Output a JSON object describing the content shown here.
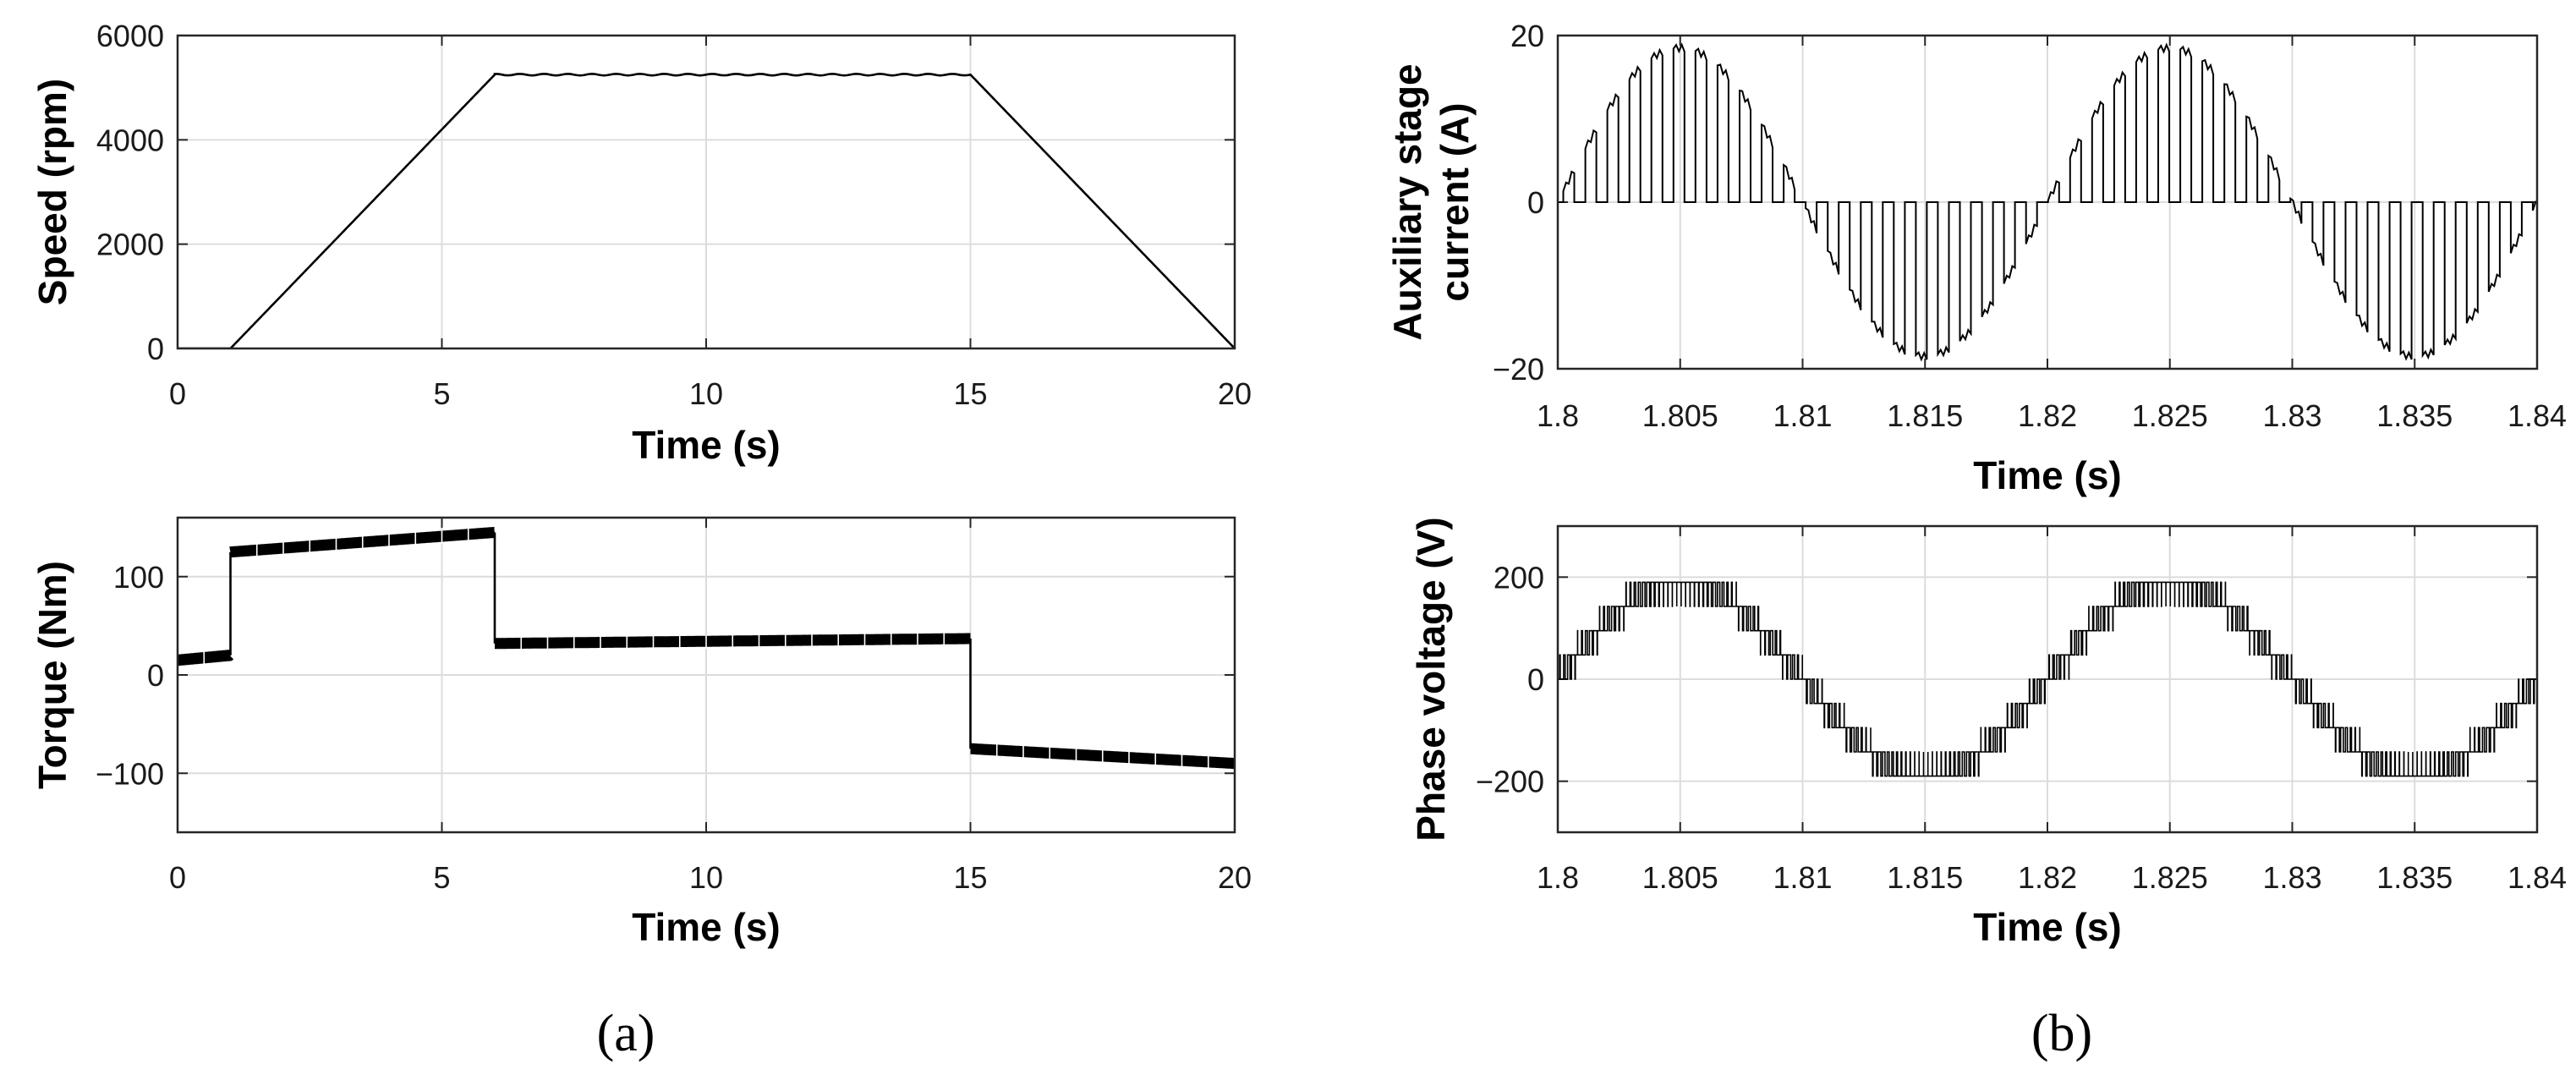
{
  "figure": {
    "panel_labels": [
      "(a)",
      "(b)"
    ]
  },
  "chart_data": [
    {
      "id": "speed",
      "type": "line",
      "panel": "(a)",
      "title": "",
      "xlabel": "Time (s)",
      "ylabel": "Speed (rpm)",
      "xlim": [
        0,
        20
      ],
      "ylim": [
        0,
        6000
      ],
      "xticks": [
        0,
        5,
        10,
        15,
        20
      ],
      "yticks": [
        0,
        2000,
        4000,
        6000
      ],
      "xtick_labels": [
        "0",
        "5",
        "10",
        "15",
        "20"
      ],
      "ytick_labels": [
        "0",
        "2000",
        "4000",
        "6000"
      ],
      "grid": true,
      "series": [
        {
          "name": "Speed",
          "x": [
            0,
            1,
            6,
            15,
            20
          ],
          "y": [
            0,
            0,
            5250,
            5250,
            0
          ],
          "plateau_ripple": 30
        }
      ]
    },
    {
      "id": "torque",
      "type": "line",
      "panel": "(a)",
      "title": "",
      "xlabel": "Time (s)",
      "ylabel": "Torque (Nm)",
      "xlim": [
        0,
        20
      ],
      "ylim": [
        -160,
        160
      ],
      "xticks": [
        0,
        5,
        10,
        15,
        20
      ],
      "yticks": [
        -100,
        0,
        100
      ],
      "xtick_labels": [
        "0",
        "5",
        "10",
        "15",
        "20"
      ],
      "ytick_labels": [
        "−100",
        "0",
        "100"
      ],
      "grid": true,
      "series": [
        {
          "name": "Torque",
          "segments": [
            {
              "x": [
                0,
                1
              ],
              "y": [
                15,
                20
              ]
            },
            {
              "x": [
                1,
                6
              ],
              "y": [
                125,
                145
              ]
            },
            {
              "x": [
                6,
                15
              ],
              "y": [
                32,
                37
              ]
            },
            {
              "x": [
                15,
                20
              ],
              "y": [
                -75,
                -90
              ]
            }
          ],
          "ripple_band": 5
        }
      ]
    },
    {
      "id": "aux_current",
      "type": "line",
      "panel": "(b)",
      "title": "",
      "xlabel": "Time (s)",
      "ylabel": [
        "Auxiliary stage",
        "current (A)"
      ],
      "xlim": [
        1.8,
        1.84
      ],
      "ylim": [
        -20,
        20
      ],
      "xticks": [
        1.8,
        1.805,
        1.81,
        1.815,
        1.82,
        1.825,
        1.83,
        1.835,
        1.84
      ],
      "yticks": [
        -20,
        0,
        20
      ],
      "xtick_labels": [
        "1.8",
        "1.805",
        "1.81",
        "1.815",
        "1.82",
        "1.825",
        "1.83",
        "1.835",
        "1.84"
      ],
      "ytick_labels": [
        "−20",
        "0",
        "20"
      ],
      "grid": true,
      "series": [
        {
          "name": "Auxiliary stage current",
          "waveform": "gated sine",
          "amplitude": 18.5,
          "frequency_hz": 50,
          "t0": 1.8,
          "switching_period": 0.0009,
          "on_fraction": 0.5
        }
      ]
    },
    {
      "id": "phase_voltage",
      "type": "line",
      "panel": "(b)",
      "title": "",
      "xlabel": "Time (s)",
      "ylabel": "Phase voltage (V)",
      "xlim": [
        1.8,
        1.84
      ],
      "ylim": [
        -300,
        300
      ],
      "xticks": [
        1.8,
        1.805,
        1.81,
        1.815,
        1.82,
        1.825,
        1.83,
        1.835,
        1.84
      ],
      "yticks": [
        -200,
        0,
        200
      ],
      "xtick_labels": [
        "1.8",
        "1.805",
        "1.81",
        "1.815",
        "1.82",
        "1.825",
        "1.83",
        "1.835",
        "1.84"
      ],
      "ytick_labels": [
        "−200",
        "0",
        "200"
      ],
      "grid": true,
      "series": [
        {
          "name": "Phase voltage",
          "waveform": "multilevel PWM",
          "amplitude": 190,
          "levels": 4,
          "frequency_hz": 50,
          "t0": 1.8,
          "switching_period": 0.00018
        }
      ]
    }
  ]
}
